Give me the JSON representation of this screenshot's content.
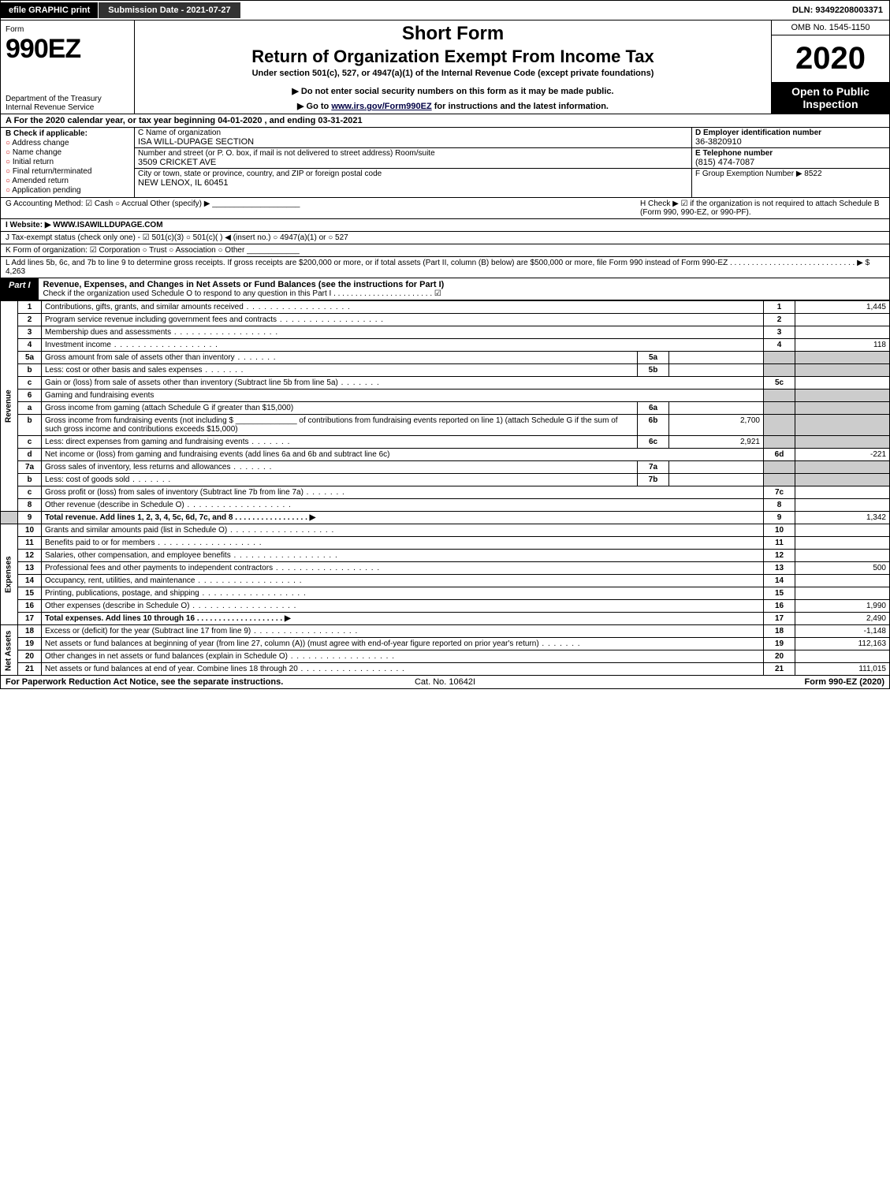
{
  "topbar": {
    "efile": "efile GRAPHIC print",
    "subm": "Submission Date - 2021-07-27",
    "dln": "DLN: 93492208003371"
  },
  "title": {
    "form": "Form",
    "num": "990EZ",
    "dept": "Department of the Treasury\nInternal Revenue Service",
    "sf": "Short Form",
    "ro": "Return of Organization Exempt From Income Tax",
    "under": "Under section 501(c), 527, or 4947(a)(1) of the Internal Revenue Code (except private foundations)",
    "warn": "▶ Do not enter social security numbers on this form as it may be made public.",
    "goto_pre": "▶ Go to ",
    "goto_link": "www.irs.gov/Form990EZ",
    "goto_post": " for instructions and the latest information.",
    "omb": "OMB No. 1545-1150",
    "year": "2020",
    "open": "Open to Public Inspection"
  },
  "rowA": "A  For the 2020 calendar year, or tax year beginning 04-01-2020 , and ending 03-31-2021",
  "B": {
    "head": "B  Check if applicable:",
    "c1": "Address change",
    "c2": "Name change",
    "c3": "Initial return",
    "c4": "Final return/terminated",
    "c5": "Amended return",
    "c6": "Application pending"
  },
  "C": {
    "l1": "C Name of organization",
    "orgname": "ISA WILL-DUPAGE SECTION",
    "l2": "Number and street (or P. O. box, if mail is not delivered to street address)          Room/suite",
    "addr": "3509 CRICKET AVE",
    "l3": "City or town, state or province, country, and ZIP or foreign postal code",
    "city": "NEW LENOX, IL  60451"
  },
  "D": {
    "l1": "D Employer identification number",
    "ein": "36-3820910",
    "l2": "E Telephone number",
    "tel": "(815) 474-7087",
    "l3": "F Group Exemption Number  ▶ 8522"
  },
  "G": "G Accounting Method:   ☑ Cash   ○ Accrual   Other (specify) ▶ ____________________",
  "H": "H  Check ▶  ☑  if the organization is not required to attach Schedule B (Form 990, 990-EZ, or 990-PF).",
  "I": "I Website: ▶ WWW.ISAWILLDUPAGE.COM",
  "J": "J Tax-exempt status (check only one) -  ☑ 501(c)(3)  ○ 501(c)(  ) ◀ (insert no.)  ○ 4947(a)(1) or  ○ 527",
  "K": "K Form of organization:   ☑ Corporation   ○ Trust   ○ Association   ○ Other  ____________",
  "L": "L Add lines 5b, 6c, and 7b to line 9 to determine gross receipts. If gross receipts are $200,000 or more, or if total assets (Part II, column (B) below) are $500,000 or more, file Form 990 instead of Form 990-EZ  .  .  .  .  .  .  .  .  .  .  .  .  .  .  .  .  .  .  .  .  .  .  .  .  .  .  .  .  .  ▶ $ 4,263",
  "part1": {
    "label": "Part I",
    "title": "Revenue, Expenses, and Changes in Net Assets or Fund Balances (see the instructions for Part I)",
    "sub": "Check if the organization used Schedule O to respond to any question in this Part I  .  .  .  .  .  .  .  .  .  .  .  .  .  .  .  .  .  .  .  .  .  .  . ☑"
  },
  "sidelabels": {
    "rev": "Revenue",
    "exp": "Expenses",
    "na": "Net Assets"
  },
  "lines": {
    "l1": {
      "n": "1",
      "d": "Contributions, gifts, grants, and similar amounts received",
      "rn": "1",
      "rv": "1,445"
    },
    "l2": {
      "n": "2",
      "d": "Program service revenue including government fees and contracts",
      "rn": "2",
      "rv": ""
    },
    "l3": {
      "n": "3",
      "d": "Membership dues and assessments",
      "rn": "3",
      "rv": ""
    },
    "l4": {
      "n": "4",
      "d": "Investment income",
      "rn": "4",
      "rv": "118"
    },
    "l5a": {
      "n": "5a",
      "d": "Gross amount from sale of assets other than inventory",
      "sn": "5a",
      "sv": ""
    },
    "l5b": {
      "n": "b",
      "d": "Less: cost or other basis and sales expenses",
      "sn": "5b",
      "sv": ""
    },
    "l5c": {
      "n": "c",
      "d": "Gain or (loss) from sale of assets other than inventory (Subtract line 5b from line 5a)",
      "rn": "5c",
      "rv": ""
    },
    "l6": {
      "n": "6",
      "d": "Gaming and fundraising events"
    },
    "l6a": {
      "n": "a",
      "d": "Gross income from gaming (attach Schedule G if greater than $15,000)",
      "sn": "6a",
      "sv": ""
    },
    "l6b": {
      "n": "b",
      "d": "Gross income from fundraising events (not including $ ______________ of contributions from fundraising events reported on line 1) (attach Schedule G if the sum of such gross income and contributions exceeds $15,000)",
      "sn": "6b",
      "sv": "2,700"
    },
    "l6c": {
      "n": "c",
      "d": "Less: direct expenses from gaming and fundraising events",
      "sn": "6c",
      "sv": "2,921"
    },
    "l6d": {
      "n": "d",
      "d": "Net income or (loss) from gaming and fundraising events (add lines 6a and 6b and subtract line 6c)",
      "rn": "6d",
      "rv": "-221"
    },
    "l7a": {
      "n": "7a",
      "d": "Gross sales of inventory, less returns and allowances",
      "sn": "7a",
      "sv": ""
    },
    "l7b": {
      "n": "b",
      "d": "Less: cost of goods sold",
      "sn": "7b",
      "sv": ""
    },
    "l7c": {
      "n": "c",
      "d": "Gross profit or (loss) from sales of inventory (Subtract line 7b from line 7a)",
      "rn": "7c",
      "rv": ""
    },
    "l8": {
      "n": "8",
      "d": "Other revenue (describe in Schedule O)",
      "rn": "8",
      "rv": ""
    },
    "l9": {
      "n": "9",
      "d": "Total revenue. Add lines 1, 2, 3, 4, 5c, 6d, 7c, and 8   .  .  .  .  .  .  .  .  .  .  .  .  .  .  .  .  . ▶",
      "rn": "9",
      "rv": "1,342"
    },
    "l10": {
      "n": "10",
      "d": "Grants and similar amounts paid (list in Schedule O)",
      "rn": "10",
      "rv": ""
    },
    "l11": {
      "n": "11",
      "d": "Benefits paid to or for members",
      "rn": "11",
      "rv": ""
    },
    "l12": {
      "n": "12",
      "d": "Salaries, other compensation, and employee benefits",
      "rn": "12",
      "rv": ""
    },
    "l13": {
      "n": "13",
      "d": "Professional fees and other payments to independent contractors",
      "rn": "13",
      "rv": "500"
    },
    "l14": {
      "n": "14",
      "d": "Occupancy, rent, utilities, and maintenance",
      "rn": "14",
      "rv": ""
    },
    "l15": {
      "n": "15",
      "d": "Printing, publications, postage, and shipping",
      "rn": "15",
      "rv": ""
    },
    "l16": {
      "n": "16",
      "d": "Other expenses (describe in Schedule O)",
      "rn": "16",
      "rv": "1,990"
    },
    "l17": {
      "n": "17",
      "d": "Total expenses. Add lines 10 through 16   .  .  .  .  .  .  .  .  .  .  .  .  .  .  .  .  .  .  .  . ▶",
      "rn": "17",
      "rv": "2,490"
    },
    "l18": {
      "n": "18",
      "d": "Excess or (deficit) for the year (Subtract line 17 from line 9)",
      "rn": "18",
      "rv": "-1,148"
    },
    "l19": {
      "n": "19",
      "d": "Net assets or fund balances at beginning of year (from line 27, column (A)) (must agree with end-of-year figure reported on prior year's return)",
      "rn": "19",
      "rv": "112,163"
    },
    "l20": {
      "n": "20",
      "d": "Other changes in net assets or fund balances (explain in Schedule O)",
      "rn": "20",
      "rv": ""
    },
    "l21": {
      "n": "21",
      "d": "Net assets or fund balances at end of year. Combine lines 18 through 20",
      "rn": "21",
      "rv": "111,015"
    }
  },
  "foot": {
    "f1": "For Paperwork Reduction Act Notice, see the separate instructions.",
    "f2": "Cat. No. 10642I",
    "f3": "Form 990-EZ (2020)"
  }
}
